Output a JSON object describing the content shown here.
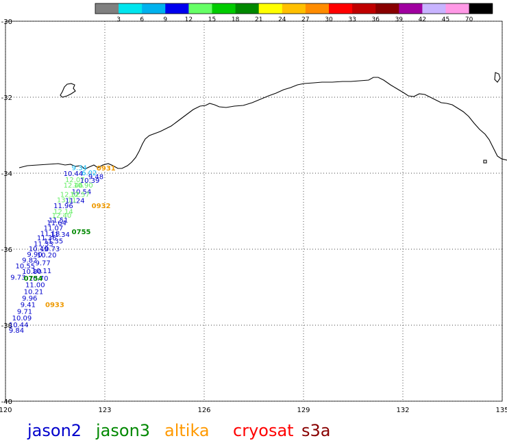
{
  "colorbar": {
    "ticks": [
      "3",
      "6",
      "9",
      "12",
      "15",
      "18",
      "21",
      "24",
      "27",
      "30",
      "33",
      "36",
      "39",
      "42",
      "45",
      "70"
    ],
    "colors": [
      "#808080",
      "#00e5ee",
      "#00b2ee",
      "#0000ee",
      "#66ff66",
      "#00cc00",
      "#008800",
      "#ffff00",
      "#ffc000",
      "#ff8c00",
      "#ff0000",
      "#c00000",
      "#880000",
      "#a000a0",
      "#c8b4ff",
      "#ff99e6",
      "#000000"
    ]
  },
  "axes": {
    "lon_labels": [
      "120",
      "123",
      "126",
      "129",
      "132",
      "135"
    ],
    "lat_labels": [
      "-30",
      "-32",
      "-34",
      "-36",
      "-38",
      "-40"
    ],
    "lon_range": [
      120,
      135
    ],
    "lat_range": [
      -30,
      -40
    ],
    "grid": "dotted"
  },
  "track_labels": [
    {
      "text": "9.34",
      "color": "#00b2ee",
      "lon": 122.0,
      "lat": -33.92
    },
    {
      "text": "10.44",
      "color": "#0000cc",
      "lon": 121.75,
      "lat": -34.07
    },
    {
      "text": "6.02",
      "color": "#00b2ee",
      "lon": 122.3,
      "lat": -34.05
    },
    {
      "text": "9.48",
      "color": "#0000cc",
      "lon": 122.5,
      "lat": -34.15
    },
    {
      "text": "12.07",
      "color": "#66ee66",
      "lon": 121.8,
      "lat": -34.23
    },
    {
      "text": "10.39",
      "color": "#0000cc",
      "lon": 122.25,
      "lat": -34.25
    },
    {
      "text": "12.46",
      "color": "#66ee66",
      "lon": 121.75,
      "lat": -34.38
    },
    {
      "text": "10.90",
      "color": "#66ee66",
      "lon": 122.05,
      "lat": -34.38
    },
    {
      "text": "10.54",
      "color": "#0000cc",
      "lon": 122.0,
      "lat": -34.55
    },
    {
      "text": "12.52",
      "color": "#66ee66",
      "lon": 121.65,
      "lat": -34.62
    },
    {
      "text": "12.57",
      "color": "#66ee66",
      "lon": 121.95,
      "lat": -34.62
    },
    {
      "text": "13.11",
      "color": "#66ee66",
      "lon": 121.55,
      "lat": -34.77
    },
    {
      "text": "11.24",
      "color": "#0000cc",
      "lon": 121.8,
      "lat": -34.78
    },
    {
      "text": "11.96",
      "color": "#0000cc",
      "lon": 121.45,
      "lat": -34.92
    },
    {
      "text": "12.14",
      "color": "#66ee66",
      "lon": 121.45,
      "lat": -35.07
    },
    {
      "text": "12.40",
      "color": "#66ee66",
      "lon": 121.4,
      "lat": -35.17
    },
    {
      "text": "11.51",
      "color": "#0000cc",
      "lon": 121.3,
      "lat": -35.3
    },
    {
      "text": "11.64",
      "color": "#0000cc",
      "lon": 121.25,
      "lat": -35.37
    },
    {
      "text": "11.07",
      "color": "#0000cc",
      "lon": 121.15,
      "lat": -35.5
    },
    {
      "text": "11.18",
      "color": "#0000cc",
      "lon": 121.05,
      "lat": -35.65
    },
    {
      "text": "11.34",
      "color": "#0000cc",
      "lon": 121.35,
      "lat": -35.68
    },
    {
      "text": "11.36",
      "color": "#0000cc",
      "lon": 120.95,
      "lat": -35.77
    },
    {
      "text": "11.35",
      "color": "#0000cc",
      "lon": 121.15,
      "lat": -35.85
    },
    {
      "text": "11.33",
      "color": "#0000cc",
      "lon": 120.85,
      "lat": -35.92
    },
    {
      "text": "10.49",
      "color": "#0000cc",
      "lon": 120.7,
      "lat": -36.05
    },
    {
      "text": "10.73",
      "color": "#0000cc",
      "lon": 121.05,
      "lat": -36.05
    },
    {
      "text": "9.90",
      "color": "#0000cc",
      "lon": 120.65,
      "lat": -36.2
    },
    {
      "text": "10.20",
      "color": "#0000cc",
      "lon": 120.95,
      "lat": -36.22
    },
    {
      "text": "9.82",
      "color": "#0000cc",
      "lon": 120.5,
      "lat": -36.35
    },
    {
      "text": "9.77",
      "color": "#0000cc",
      "lon": 120.9,
      "lat": -36.42
    },
    {
      "text": "10.55",
      "color": "#0000cc",
      "lon": 120.3,
      "lat": -36.5
    },
    {
      "text": "10.80",
      "color": "#0000cc",
      "lon": 120.5,
      "lat": -36.65
    },
    {
      "text": "10.11",
      "color": "#0000cc",
      "lon": 120.8,
      "lat": -36.63
    },
    {
      "text": "9.73",
      "color": "#0000cc",
      "lon": 120.15,
      "lat": -36.8
    },
    {
      "text": "10.70",
      "color": "#0000cc",
      "lon": 120.7,
      "lat": -36.83
    },
    {
      "text": "11.00",
      "color": "#0000cc",
      "lon": 120.6,
      "lat": -37.0
    },
    {
      "text": "10.21",
      "color": "#0000cc",
      "lon": 120.55,
      "lat": -37.18
    },
    {
      "text": "9.96",
      "color": "#0000cc",
      "lon": 120.5,
      "lat": -37.35
    },
    {
      "text": "9.41",
      "color": "#0000cc",
      "lon": 120.45,
      "lat": -37.52
    },
    {
      "text": "9.71",
      "color": "#0000cc",
      "lon": 120.35,
      "lat": -37.7
    },
    {
      "text": "10.09",
      "color": "#0000cc",
      "lon": 120.2,
      "lat": -37.87
    },
    {
      "text": "10.44",
      "color": "#0000cc",
      "lon": 120.1,
      "lat": -38.05
    },
    {
      "text": "9.84",
      "color": "#0000cc",
      "lon": 120.1,
      "lat": -38.2
    }
  ],
  "pass_labels": [
    {
      "text": "0931",
      "color": "#ee9900",
      "lon": 122.75,
      "lat": -33.93
    },
    {
      "text": "0932",
      "color": "#ee9900",
      "lon": 122.6,
      "lat": -34.92
    },
    {
      "text": "0755",
      "color": "#008800",
      "lon": 122.0,
      "lat": -35.6
    },
    {
      "text": "0754",
      "color": "#008800",
      "lon": 120.55,
      "lat": -36.83
    },
    {
      "text": "0933",
      "color": "#ee9900",
      "lon": 121.2,
      "lat": -37.52
    }
  ],
  "legend": [
    {
      "label": "jason2",
      "color": "#0000cc"
    },
    {
      "label": "jason3",
      "color": "#008800"
    },
    {
      "label": "altika",
      "color": "#ff9900"
    },
    {
      "label": "cryosat",
      "color": "#ff0000"
    },
    {
      "label": "s3a",
      "color": "#880000"
    }
  ]
}
